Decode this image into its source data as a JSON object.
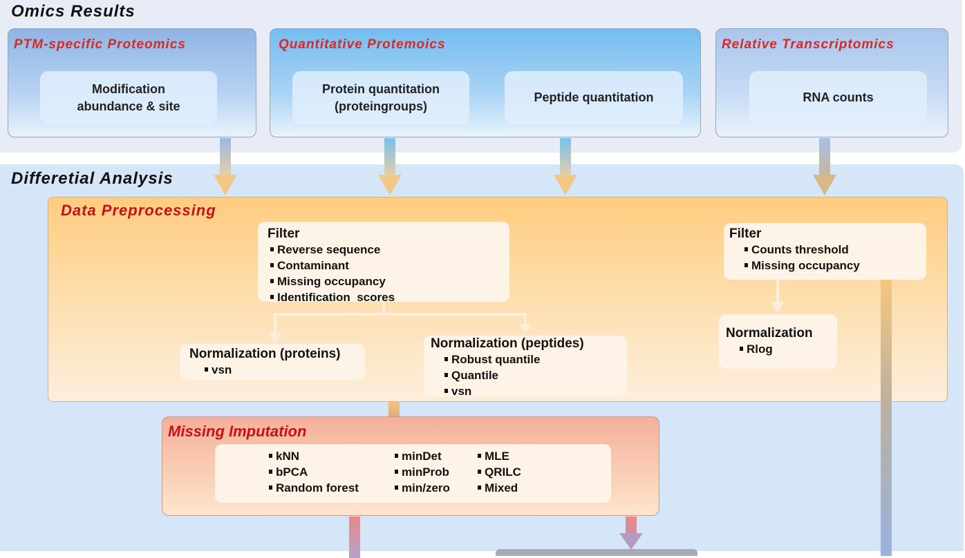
{
  "omics_results": {
    "title": "Omics Results",
    "ptm": {
      "title": "PTM-specific Proteomics",
      "item_line1": "Modification",
      "item_line2": "abundance & site"
    },
    "quant": {
      "title": "Quantitative Protemoics",
      "protein_line1": "Protein quantitation",
      "protein_line2": "(proteingroups)",
      "peptide": "Peptide quantitation"
    },
    "rna": {
      "title": "Relative Transcriptomics",
      "item": "RNA counts"
    }
  },
  "differential_analysis": {
    "title": "Differetial Analysis",
    "preprocessing": {
      "title": "Data Preprocessing",
      "filter_proteomics": {
        "heading": "Filter",
        "items": [
          "Reverse sequence",
          "Contaminant",
          "Missing occupancy",
          "Identification  scores"
        ]
      },
      "norm_proteins": {
        "heading": "Normalization (proteins)",
        "items": [
          "vsn"
        ]
      },
      "norm_peptides": {
        "heading": "Normalization (peptides)",
        "items": [
          "Robust quantile",
          "Quantile",
          "vsn"
        ]
      },
      "filter_rna": {
        "heading": "Filter",
        "items": [
          "Counts threshold",
          "Missing occupancy"
        ]
      },
      "norm_rna": {
        "heading": "Normalization",
        "items": [
          "Rlog"
        ]
      }
    },
    "imputation": {
      "title": "Missing Imputation",
      "col1": [
        "kNN",
        "bPCA",
        "Random forest"
      ],
      "col2": [
        "minDet",
        "minProb",
        "min/zero"
      ],
      "col3": [
        "MLE",
        "QRILC",
        "Mixed"
      ]
    }
  },
  "colors": {
    "title_red": "#d42a2a",
    "block_red": "#c8101b",
    "top_bg": "#e8ecf6",
    "bottom_bg": "#d4e6f7",
    "preprocess_orange": "#ffcc7f",
    "imputation_salmon": "#f4b09a"
  }
}
